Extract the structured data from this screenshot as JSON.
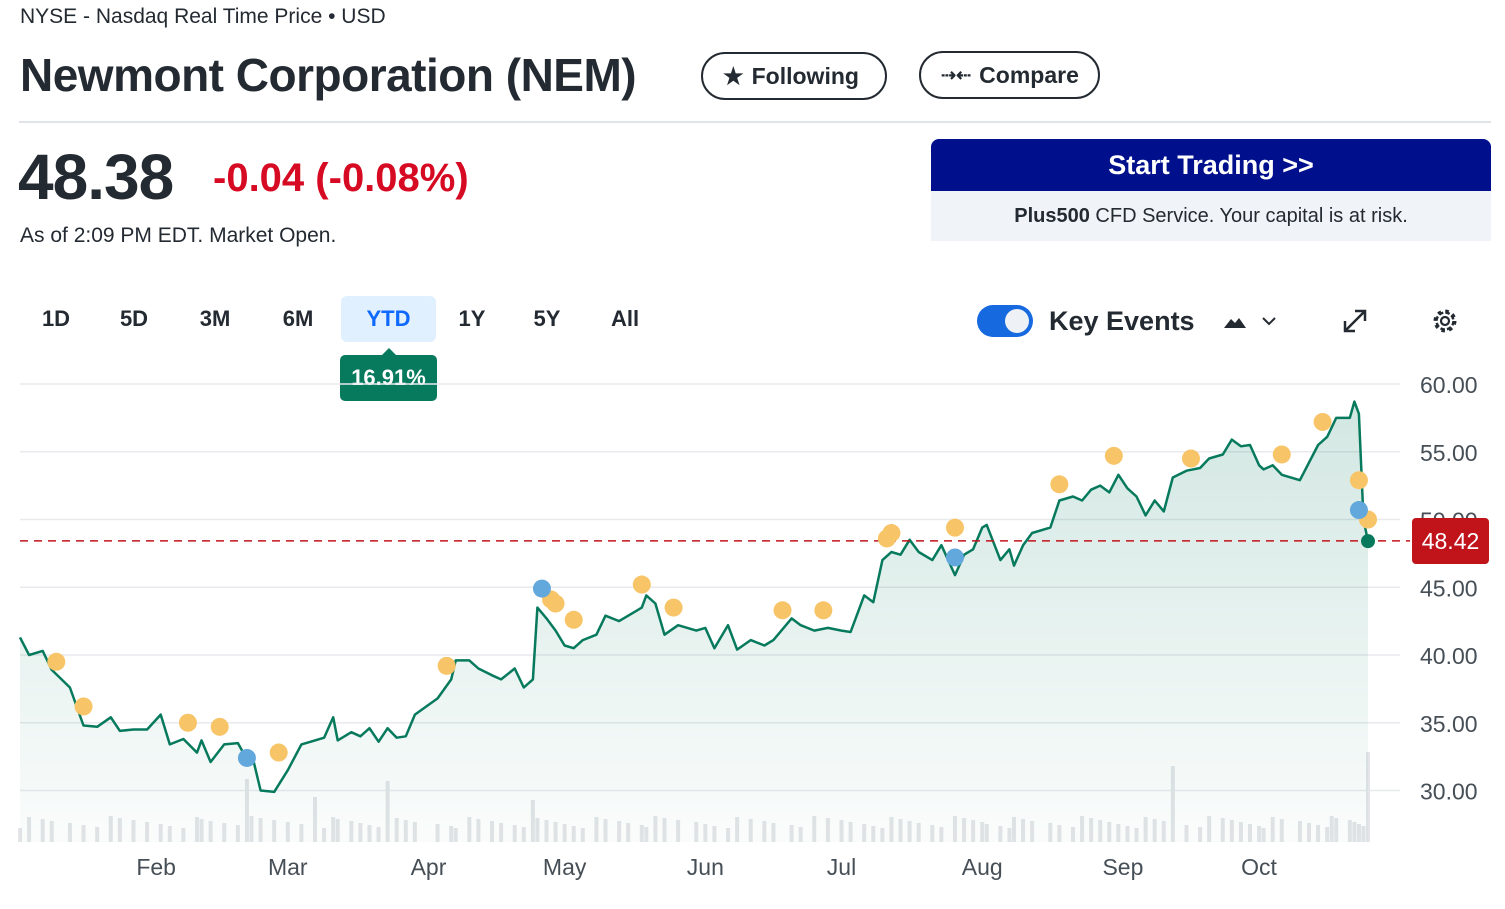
{
  "header": {
    "exchange": "NYSE - Nasdaq Real Time Price • USD",
    "title": "Newmont Corporation (NEM)",
    "following_label": "Following",
    "compare_label": "Compare"
  },
  "quote": {
    "price": "48.38",
    "change": "-0.04",
    "change_pct": "(-0.08%)",
    "as_of": "As of 2:09 PM EDT. Market Open."
  },
  "ad": {
    "button_label": "Start Trading >>",
    "brand": "Plus500",
    "disclaimer": " CFD Service. Your capital is at risk.",
    "button_color": "#000f8c"
  },
  "ranges": [
    {
      "label": "1D"
    },
    {
      "label": "5D"
    },
    {
      "label": "3M"
    },
    {
      "label": "6M"
    },
    {
      "label": "YTD",
      "active": true
    },
    {
      "label": "1Y"
    },
    {
      "label": "5Y"
    },
    {
      "label": "All"
    }
  ],
  "range_performance": "16.91%",
  "controls": {
    "key_events_label": "Key Events",
    "key_events_on": true,
    "chart_type_icon": "mountain-chart-icon",
    "expand_icon": "expand-icon",
    "settings_icon": "gear-icon"
  },
  "chart_data": {
    "type": "area",
    "ylim": [
      26,
      61
    ],
    "yticks": [
      "60.00",
      "55.00",
      "50.00",
      "45.00",
      "40.00",
      "35.00",
      "30.00"
    ],
    "ytick_values": [
      60,
      55,
      50,
      45,
      40,
      35,
      30
    ],
    "xticks": [
      {
        "label": "Feb",
        "date": "02-01"
      },
      {
        "label": "Mar",
        "date": "03-01"
      },
      {
        "label": "Apr",
        "date": "04-01"
      },
      {
        "label": "May",
        "date": "05-01"
      },
      {
        "label": "Jun",
        "date": "06-01"
      },
      {
        "label": "Jul",
        "date": "07-01"
      },
      {
        "label": "Aug",
        "date": "08-01"
      },
      {
        "label": "Sep",
        "date": "09-01"
      },
      {
        "label": "Oct",
        "date": "10-01"
      }
    ],
    "last_price_label": "48.42",
    "last_price": 48.42,
    "line_color": "#077a5d",
    "ref_line_color": "#c0141a",
    "series": [
      [
        "01-02",
        41.3
      ],
      [
        "01-04",
        40.0
      ],
      [
        "01-07",
        40.3
      ],
      [
        "01-09",
        38.9
      ],
      [
        "01-13",
        37.6
      ],
      [
        "01-16",
        34.8
      ],
      [
        "01-19",
        34.7
      ],
      [
        "01-22",
        35.4
      ],
      [
        "01-24",
        34.4
      ],
      [
        "01-27",
        34.5
      ],
      [
        "01-30",
        34.5
      ],
      [
        "02-02",
        35.6
      ],
      [
        "02-04",
        33.4
      ],
      [
        "02-07",
        33.8
      ],
      [
        "02-10",
        32.8
      ],
      [
        "02-11",
        33.7
      ],
      [
        "02-13",
        32.1
      ],
      [
        "02-16",
        33.4
      ],
      [
        "02-19",
        33.5
      ],
      [
        "02-21",
        32.3
      ],
      [
        "02-22",
        32.8
      ],
      [
        "02-24",
        30.0
      ],
      [
        "02-27",
        29.9
      ],
      [
        "03-01",
        31.5
      ],
      [
        "03-04",
        33.4
      ],
      [
        "03-07",
        33.7
      ],
      [
        "03-09",
        33.9
      ],
      [
        "03-11",
        35.4
      ],
      [
        "03-12",
        33.7
      ],
      [
        "03-15",
        34.3
      ],
      [
        "03-17",
        34.0
      ],
      [
        "03-19",
        34.6
      ],
      [
        "03-21",
        33.6
      ],
      [
        "03-23",
        34.6
      ],
      [
        "03-25",
        33.9
      ],
      [
        "03-27",
        34.0
      ],
      [
        "03-29",
        35.6
      ],
      [
        "04-03",
        36.8
      ],
      [
        "04-06",
        38.2
      ],
      [
        "04-07",
        39.6
      ],
      [
        "04-10",
        39.6
      ],
      [
        "04-12",
        39.0
      ],
      [
        "04-15",
        38.5
      ],
      [
        "04-17",
        38.2
      ],
      [
        "04-20",
        39.0
      ],
      [
        "04-22",
        37.6
      ],
      [
        "04-24",
        38.2
      ],
      [
        "04-25",
        43.5
      ],
      [
        "04-27",
        42.7
      ],
      [
        "04-29",
        41.8
      ],
      [
        "05-01",
        40.7
      ],
      [
        "05-03",
        40.5
      ],
      [
        "05-05",
        41.1
      ],
      [
        "05-08",
        41.5
      ],
      [
        "05-10",
        42.9
      ],
      [
        "05-13",
        42.5
      ],
      [
        "05-15",
        42.9
      ],
      [
        "05-18",
        43.5
      ],
      [
        "05-19",
        44.4
      ],
      [
        "05-21",
        43.8
      ],
      [
        "05-23",
        41.5
      ],
      [
        "05-26",
        42.2
      ],
      [
        "05-30",
        41.8
      ],
      [
        "06-01",
        42.0
      ],
      [
        "06-03",
        40.5
      ],
      [
        "06-06",
        42.2
      ],
      [
        "06-08",
        40.4
      ],
      [
        "06-11",
        41.1
      ],
      [
        "06-14",
        40.7
      ],
      [
        "06-16",
        41.1
      ],
      [
        "06-20",
        42.7
      ],
      [
        "06-22",
        42.2
      ],
      [
        "06-25",
        41.8
      ],
      [
        "06-28",
        42.0
      ],
      [
        "07-01",
        41.8
      ],
      [
        "07-03",
        41.7
      ],
      [
        "07-06",
        44.4
      ],
      [
        "07-08",
        43.9
      ],
      [
        "07-10",
        47.0
      ],
      [
        "07-12",
        47.6
      ],
      [
        "07-14",
        47.4
      ],
      [
        "07-16",
        48.5
      ],
      [
        "07-18",
        47.6
      ],
      [
        "07-21",
        47.0
      ],
      [
        "07-23",
        48.1
      ],
      [
        "07-26",
        45.9
      ],
      [
        "07-28",
        47.4
      ],
      [
        "07-30",
        47.8
      ],
      [
        "08-01",
        49.4
      ],
      [
        "08-02",
        49.6
      ],
      [
        "08-05",
        47.0
      ],
      [
        "08-07",
        47.8
      ],
      [
        "08-08",
        46.6
      ],
      [
        "08-10",
        48.1
      ],
      [
        "08-12",
        49.0
      ],
      [
        "08-16",
        49.4
      ],
      [
        "08-18",
        51.4
      ],
      [
        "08-21",
        51.7
      ],
      [
        "08-23",
        51.4
      ],
      [
        "08-25",
        52.2
      ],
      [
        "08-27",
        52.5
      ],
      [
        "08-29",
        52.0
      ],
      [
        "08-31",
        53.3
      ],
      [
        "09-02",
        52.3
      ],
      [
        "09-04",
        51.7
      ],
      [
        "09-06",
        50.3
      ],
      [
        "09-08",
        51.4
      ],
      [
        "09-10",
        50.6
      ],
      [
        "09-12",
        53.1
      ],
      [
        "09-15",
        53.6
      ],
      [
        "09-18",
        53.8
      ],
      [
        "09-20",
        54.5
      ],
      [
        "09-23",
        54.8
      ],
      [
        "09-25",
        55.9
      ],
      [
        "09-27",
        55.4
      ],
      [
        "09-29",
        55.5
      ],
      [
        "10-01",
        54.0
      ],
      [
        "10-02",
        53.7
      ],
      [
        "10-04",
        54.0
      ],
      [
        "10-06",
        53.3
      ],
      [
        "10-10",
        52.9
      ],
      [
        "10-12",
        54.2
      ],
      [
        "10-14",
        55.5
      ],
      [
        "10-16",
        56.1
      ],
      [
        "10-17",
        56.8
      ],
      [
        "10-18",
        57.5
      ],
      [
        "10-21",
        57.5
      ],
      [
        "10-22",
        58.7
      ],
      [
        "10-23",
        57.8
      ],
      [
        "10-24",
        50.0
      ],
      [
        "10-25",
        48.4
      ]
    ],
    "events": [
      {
        "date": "01-10",
        "value": 39.5,
        "color": "#f8c468"
      },
      {
        "date": "01-16",
        "value": 36.2,
        "color": "#f8c468"
      },
      {
        "date": "02-08",
        "value": 35.0,
        "color": "#f8c468"
      },
      {
        "date": "02-15",
        "value": 34.7,
        "color": "#f8c468"
      },
      {
        "date": "02-28",
        "value": 32.8,
        "color": "#f8c468"
      },
      {
        "date": "04-05",
        "value": 39.2,
        "color": "#f8c468"
      },
      {
        "date": "04-28",
        "value": 44.1,
        "color": "#f8c468"
      },
      {
        "date": "04-29",
        "value": 43.8,
        "color": "#f8c468"
      },
      {
        "date": "05-03",
        "value": 42.6,
        "color": "#f8c468"
      },
      {
        "date": "05-18",
        "value": 45.2,
        "color": "#f8c468"
      },
      {
        "date": "05-25",
        "value": 43.5,
        "color": "#f8c468"
      },
      {
        "date": "06-18",
        "value": 43.3,
        "color": "#f8c468"
      },
      {
        "date": "06-27",
        "value": 43.3,
        "color": "#f8c468"
      },
      {
        "date": "07-11",
        "value": 48.6,
        "color": "#f8c468"
      },
      {
        "date": "07-12",
        "value": 49.0,
        "color": "#f8c468"
      },
      {
        "date": "07-26",
        "value": 49.4,
        "color": "#f8c468"
      },
      {
        "date": "08-18",
        "value": 52.6,
        "color": "#f8c468"
      },
      {
        "date": "08-30",
        "value": 54.7,
        "color": "#f8c468"
      },
      {
        "date": "09-16",
        "value": 54.5,
        "color": "#f8c468"
      },
      {
        "date": "10-06",
        "value": 54.8,
        "color": "#f8c468"
      },
      {
        "date": "10-15",
        "value": 57.2,
        "color": "#f8c468"
      },
      {
        "date": "10-23",
        "value": 52.9,
        "color": "#f8c468"
      },
      {
        "date": "10-25",
        "value": 50.0,
        "color": "#f8c468"
      },
      {
        "date": "02-21",
        "value": 32.4,
        "color": "#63a8dc"
      },
      {
        "date": "04-26",
        "value": 44.9,
        "color": "#63a8dc"
      },
      {
        "date": "07-26",
        "value": 47.2,
        "color": "#63a8dc"
      },
      {
        "date": "10-23",
        "value": 50.7,
        "color": "#63a8dc"
      }
    ]
  }
}
